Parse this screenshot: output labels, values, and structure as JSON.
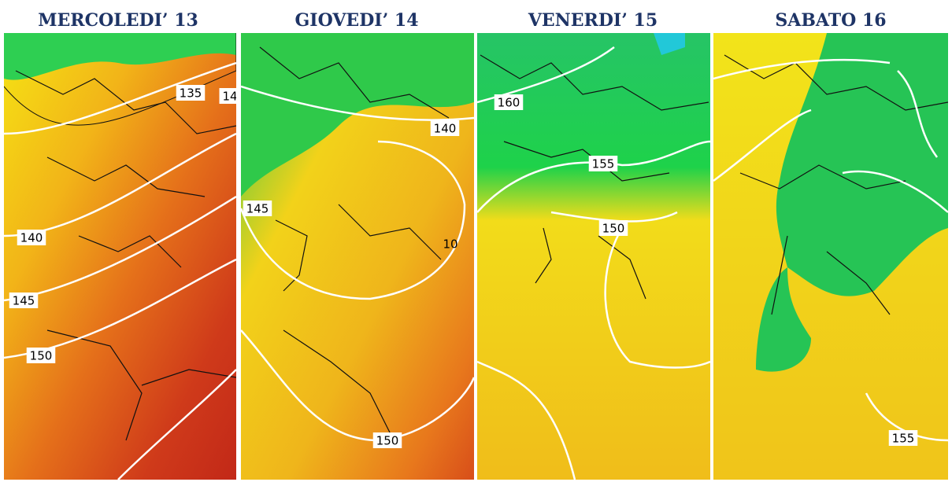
{
  "panels": [
    {
      "title": "MERCOLEDI’ 13",
      "contour_labels": [
        "135",
        "14",
        "140",
        "145",
        "150"
      ]
    },
    {
      "title": "GIOVEDI’ 14",
      "contour_labels": [
        "140",
        "145",
        "150",
        "10"
      ]
    },
    {
      "title": "VENERDI’ 15",
      "contour_labels": [
        "160",
        "155",
        "150"
      ]
    },
    {
      "title": "SABATO 16",
      "contour_labels": [
        "155"
      ]
    }
  ]
}
